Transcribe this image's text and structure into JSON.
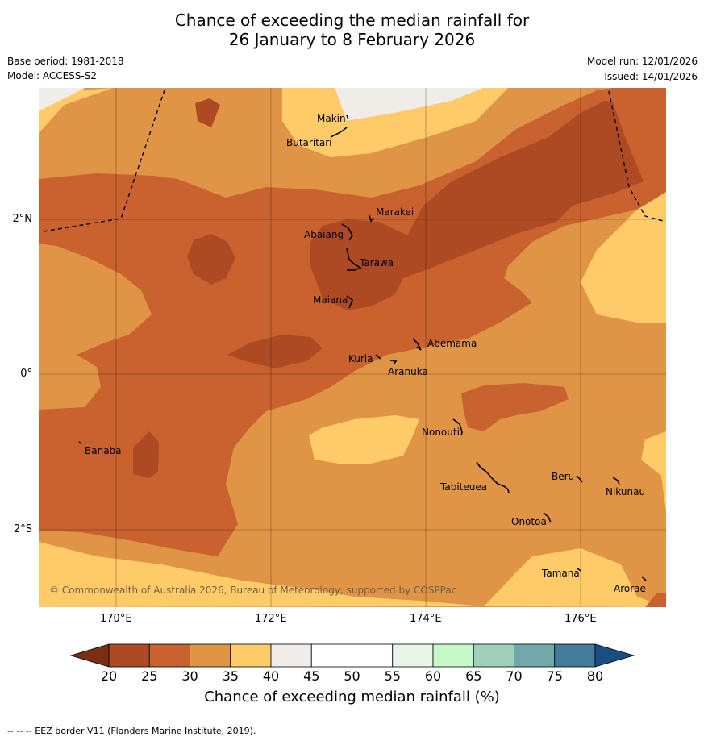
{
  "title": {
    "line1": "Chance of exceeding the median rainfall for",
    "line2": "26 January to 8 February 2026"
  },
  "meta": {
    "base_period": "Base period: 1981-2018",
    "model": "Model: ACCESS-S2",
    "model_run": "Model run: 12/01/2026",
    "issued": "Issued: 14/01/2026"
  },
  "map": {
    "copyright": "© Commonwealth of Australia 2026, Bureau of Meteorology, supported by COSPPac",
    "lat_labels": [
      "2°N",
      "0°",
      "2°S"
    ],
    "lon_labels": [
      "170°E",
      "172°E",
      "174°E",
      "176°E"
    ],
    "places": [
      "Makin",
      "Butaritari",
      "Marakei",
      "Abaiang",
      "Tarawa",
      "Maiana",
      "Abemama",
      "Kuria",
      "Aranuka",
      "Nonouti",
      "Banaba",
      "Tabiteuea",
      "Beru",
      "Nikunau",
      "Onotoa",
      "Tamana",
      "Arorae"
    ],
    "colors": {
      "c20": "#AD4A23",
      "c25": "#C9622F",
      "c30": "#E09446",
      "c35": "#FFCB69",
      "c40": "#F0ECE8",
      "c45": "#FFFFFF"
    }
  },
  "colorbar": {
    "ticks": [
      "20",
      "25",
      "30",
      "35",
      "40",
      "45",
      "50",
      "55",
      "60",
      "65",
      "70",
      "75",
      "80"
    ],
    "colors": [
      "#AD4A23",
      "#C9622F",
      "#E09446",
      "#FFCB69",
      "#F0ECE8",
      "#FFFFFF",
      "#FFFFFF",
      "#E9F4E8",
      "#C6F8C7",
      "#9FD0BB",
      "#72A9A8",
      "#437C9B"
    ],
    "under_color": "#7A2E12",
    "over_color": "#1A4E82",
    "label": "Chance of exceeding median rainfall (%)"
  },
  "footnote": "--  --  -- EEZ border V11 (Flanders Marine Institute, 2019)."
}
